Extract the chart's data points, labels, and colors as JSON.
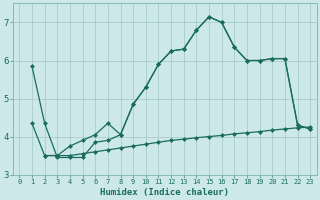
{
  "xlabel": "Humidex (Indice chaleur)",
  "bg_color": "#cce8e8",
  "grid_color": "#aacccc",
  "line_color": "#1a6b60",
  "xlim": [
    -0.5,
    23.5
  ],
  "ylim": [
    3.0,
    7.5
  ],
  "yticks": [
    3,
    4,
    5,
    6,
    7
  ],
  "xticks": [
    0,
    1,
    2,
    3,
    4,
    5,
    6,
    7,
    8,
    9,
    10,
    11,
    12,
    13,
    14,
    15,
    16,
    17,
    18,
    19,
    20,
    21,
    22,
    23
  ],
  "curve1_x": [
    1,
    2,
    3,
    4,
    5,
    6,
    7,
    8,
    9,
    10,
    11,
    12,
    13,
    14,
    15,
    16,
    17,
    18,
    19,
    20,
    21,
    22,
    23
  ],
  "curve1_y": [
    5.85,
    4.35,
    3.45,
    3.45,
    3.45,
    3.85,
    3.9,
    4.05,
    4.85,
    5.3,
    5.9,
    6.25,
    6.3,
    6.8,
    7.15,
    7.0,
    6.35,
    6.0,
    6.0,
    6.05,
    6.05,
    4.3,
    4.2
  ],
  "curve2_x": [
    1,
    2,
    3,
    4,
    5,
    6,
    7,
    8,
    9,
    10,
    11,
    12,
    13,
    14,
    15,
    16,
    17,
    18,
    19,
    20,
    21,
    22,
    23
  ],
  "curve2_y": [
    4.35,
    3.5,
    3.5,
    3.75,
    3.9,
    4.05,
    4.35,
    4.05,
    4.85,
    5.3,
    5.9,
    6.25,
    6.3,
    6.8,
    7.15,
    7.0,
    6.35,
    6.0,
    6.0,
    6.05,
    6.05,
    4.3,
    4.2
  ],
  "curve3_x": [
    2,
    3,
    4,
    5,
    6,
    7,
    8,
    9,
    10,
    11,
    12,
    13,
    14,
    15,
    16,
    17,
    18,
    19,
    20,
    21,
    22,
    23
  ],
  "curve3_y": [
    3.5,
    3.5,
    3.5,
    3.55,
    3.6,
    3.65,
    3.7,
    3.75,
    3.8,
    3.85,
    3.9,
    3.93,
    3.97,
    4.0,
    4.03,
    4.07,
    4.1,
    4.13,
    4.17,
    4.2,
    4.23,
    4.25
  ]
}
